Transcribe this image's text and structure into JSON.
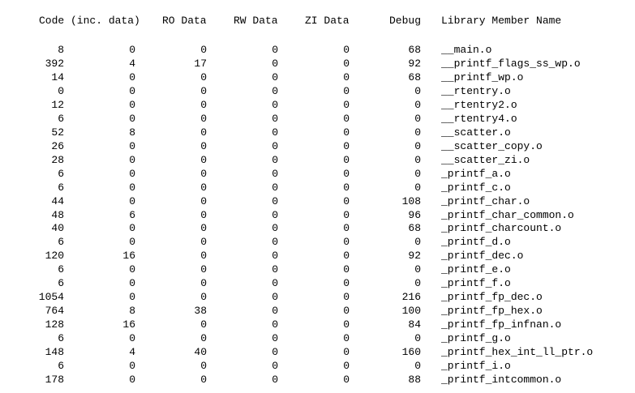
{
  "headers": {
    "code": "Code (inc. data)",
    "ro": "RO Data",
    "rw": "RW Data",
    "zi": "ZI Data",
    "debug": "Debug",
    "name": "Library Member Name"
  },
  "rows": [
    {
      "code": "8",
      "inc_data": "0",
      "ro": "0",
      "rw": "0",
      "zi": "0",
      "debug": "68",
      "name": "__main.o"
    },
    {
      "code": "392",
      "inc_data": "4",
      "ro": "17",
      "rw": "0",
      "zi": "0",
      "debug": "92",
      "name": "__printf_flags_ss_wp.o"
    },
    {
      "code": "14",
      "inc_data": "0",
      "ro": "0",
      "rw": "0",
      "zi": "0",
      "debug": "68",
      "name": "__printf_wp.o"
    },
    {
      "code": "0",
      "inc_data": "0",
      "ro": "0",
      "rw": "0",
      "zi": "0",
      "debug": "0",
      "name": "__rtentry.o"
    },
    {
      "code": "12",
      "inc_data": "0",
      "ro": "0",
      "rw": "0",
      "zi": "0",
      "debug": "0",
      "name": "__rtentry2.o"
    },
    {
      "code": "6",
      "inc_data": "0",
      "ro": "0",
      "rw": "0",
      "zi": "0",
      "debug": "0",
      "name": "__rtentry4.o"
    },
    {
      "code": "52",
      "inc_data": "8",
      "ro": "0",
      "rw": "0",
      "zi": "0",
      "debug": "0",
      "name": "__scatter.o"
    },
    {
      "code": "26",
      "inc_data": "0",
      "ro": "0",
      "rw": "0",
      "zi": "0",
      "debug": "0",
      "name": "__scatter_copy.o"
    },
    {
      "code": "28",
      "inc_data": "0",
      "ro": "0",
      "rw": "0",
      "zi": "0",
      "debug": "0",
      "name": "__scatter_zi.o"
    },
    {
      "code": "6",
      "inc_data": "0",
      "ro": "0",
      "rw": "0",
      "zi": "0",
      "debug": "0",
      "name": "_printf_a.o"
    },
    {
      "code": "6",
      "inc_data": "0",
      "ro": "0",
      "rw": "0",
      "zi": "0",
      "debug": "0",
      "name": "_printf_c.o"
    },
    {
      "code": "44",
      "inc_data": "0",
      "ro": "0",
      "rw": "0",
      "zi": "0",
      "debug": "108",
      "name": "_printf_char.o"
    },
    {
      "code": "48",
      "inc_data": "6",
      "ro": "0",
      "rw": "0",
      "zi": "0",
      "debug": "96",
      "name": "_printf_char_common.o"
    },
    {
      "code": "40",
      "inc_data": "0",
      "ro": "0",
      "rw": "0",
      "zi": "0",
      "debug": "68",
      "name": "_printf_charcount.o"
    },
    {
      "code": "6",
      "inc_data": "0",
      "ro": "0",
      "rw": "0",
      "zi": "0",
      "debug": "0",
      "name": "_printf_d.o"
    },
    {
      "code": "120",
      "inc_data": "16",
      "ro": "0",
      "rw": "0",
      "zi": "0",
      "debug": "92",
      "name": "_printf_dec.o"
    },
    {
      "code": "6",
      "inc_data": "0",
      "ro": "0",
      "rw": "0",
      "zi": "0",
      "debug": "0",
      "name": "_printf_e.o"
    },
    {
      "code": "6",
      "inc_data": "0",
      "ro": "0",
      "rw": "0",
      "zi": "0",
      "debug": "0",
      "name": "_printf_f.o"
    },
    {
      "code": "1054",
      "inc_data": "0",
      "ro": "0",
      "rw": "0",
      "zi": "0",
      "debug": "216",
      "name": "_printf_fp_dec.o"
    },
    {
      "code": "764",
      "inc_data": "8",
      "ro": "38",
      "rw": "0",
      "zi": "0",
      "debug": "100",
      "name": "_printf_fp_hex.o"
    },
    {
      "code": "128",
      "inc_data": "16",
      "ro": "0",
      "rw": "0",
      "zi": "0",
      "debug": "84",
      "name": "_printf_fp_infnan.o"
    },
    {
      "code": "6",
      "inc_data": "0",
      "ro": "0",
      "rw": "0",
      "zi": "0",
      "debug": "0",
      "name": "_printf_g.o"
    },
    {
      "code": "148",
      "inc_data": "4",
      "ro": "40",
      "rw": "0",
      "zi": "0",
      "debug": "160",
      "name": "_printf_hex_int_ll_ptr.o"
    },
    {
      "code": "6",
      "inc_data": "0",
      "ro": "0",
      "rw": "0",
      "zi": "0",
      "debug": "0",
      "name": "_printf_i.o"
    },
    {
      "code": "178",
      "inc_data": "0",
      "ro": "0",
      "rw": "0",
      "zi": "0",
      "debug": "88",
      "name": "_printf_intcommon.o"
    }
  ]
}
